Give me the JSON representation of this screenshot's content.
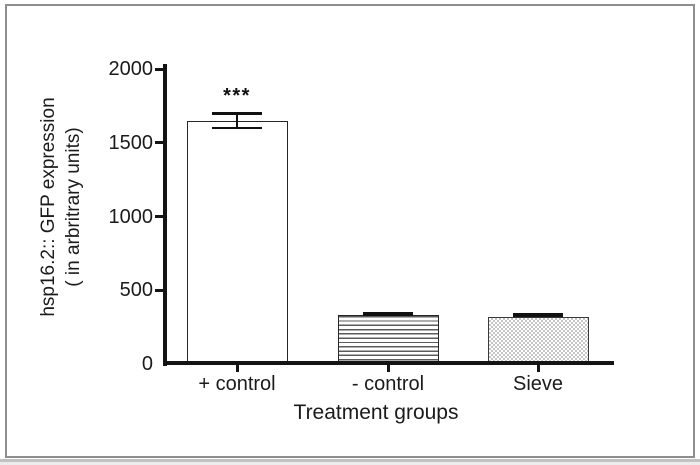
{
  "figure": {
    "significance_label": "***"
  },
  "chart_data": {
    "type": "bar",
    "title": "",
    "categories": [
      "+ control",
      "- control",
      "Sieve"
    ],
    "values": [
      1650,
      330,
      320
    ],
    "errors": [
      50,
      10,
      10
    ],
    "bar_styles": [
      "plain-white",
      "horizontal-lines",
      "stipple-dots"
    ],
    "xlabel": "Treatment groups",
    "ylabel_line1": "hsp16.2:: GFP expression",
    "ylabel_line2": "( in arbritrary units)",
    "yticks": [
      0,
      500,
      1000,
      1500,
      2000
    ],
    "ylim": [
      0,
      2000
    ],
    "grid": false,
    "legend": "none",
    "annotations": [
      {
        "text": "***",
        "category": "+ control",
        "meaning": "significance-marker"
      }
    ]
  },
  "colors": {
    "axis": "#141414",
    "text": "#1b1b1b",
    "frame_border": "#8e8e8e",
    "bar_fill": "#ffffff",
    "error_bar": "#111111"
  }
}
